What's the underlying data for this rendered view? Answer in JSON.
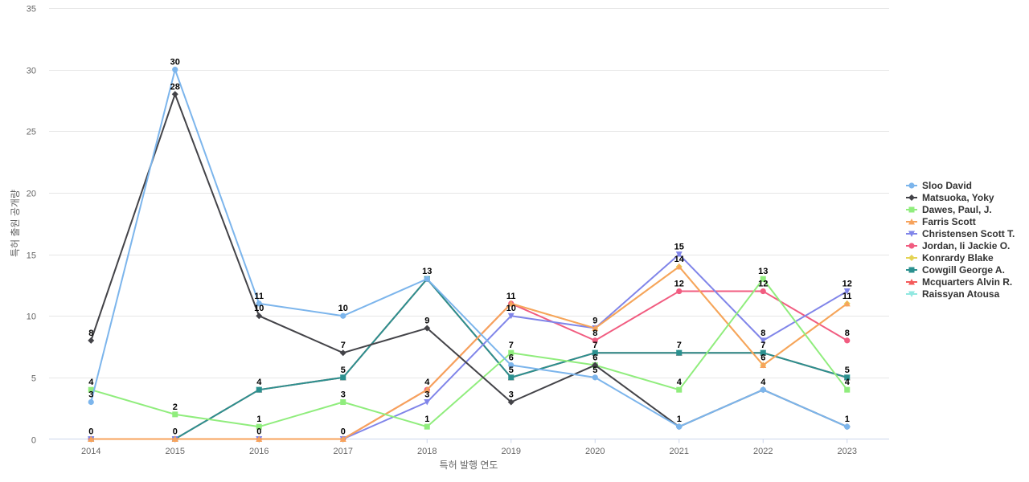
{
  "chart_data": {
    "type": "line",
    "title": "",
    "xlabel": "특허 발행 연도",
    "ylabel": "특허 출원 공개량",
    "ylim": [
      0,
      35
    ],
    "yticks": [
      0,
      5,
      10,
      15,
      20,
      25,
      30,
      35
    ],
    "grid": true,
    "legend_position": "right",
    "categories": [
      "2014",
      "2015",
      "2016",
      "2017",
      "2018",
      "2019",
      "2020",
      "2021",
      "2022",
      "2023"
    ],
    "series": [
      {
        "name": "Sloo David",
        "color": "#7cb5ec",
        "marker": "circle",
        "values": [
          3,
          30,
          11,
          10,
          13,
          6,
          5,
          1,
          4,
          1
        ]
      },
      {
        "name": "Matsuoka, Yoky",
        "color": "#434348",
        "marker": "diamond",
        "values": [
          8,
          28,
          10,
          7,
          9,
          3,
          6,
          1,
          4,
          1
        ]
      },
      {
        "name": "Dawes, Paul, J.",
        "color": "#90ed7d",
        "marker": "square",
        "values": [
          4,
          2,
          1,
          3,
          1,
          7,
          6,
          4,
          13,
          4
        ]
      },
      {
        "name": "Farris Scott",
        "color": "#f7a35c",
        "marker": "triangle",
        "values": [
          0,
          0,
          0,
          0,
          4,
          11,
          9,
          14,
          6,
          11
        ]
      },
      {
        "name": "Christensen Scott T.",
        "color": "#8085e9",
        "marker": "triangle-down",
        "values": [
          0,
          0,
          0,
          0,
          3,
          10,
          9,
          15,
          8,
          12
        ]
      },
      {
        "name": "Jordan, Ii Jackie O.",
        "color": "#f15c80",
        "marker": "circle",
        "values": [
          0,
          0,
          0,
          0,
          4,
          11,
          8,
          12,
          12,
          8
        ]
      },
      {
        "name": "Konrardy Blake",
        "color": "#e4d354",
        "marker": "diamond",
        "values": [
          0,
          0,
          0,
          0,
          4,
          11,
          9,
          14,
          6,
          11
        ]
      },
      {
        "name": "Cowgill George A.",
        "color": "#2b908f",
        "marker": "square",
        "values": [
          0,
          0,
          4,
          5,
          13,
          5,
          7,
          7,
          7,
          5
        ]
      },
      {
        "name": "Mcquarters Alvin R.",
        "color": "#f45b5b",
        "marker": "triangle",
        "values": [
          0,
          0,
          4,
          5,
          13,
          5,
          7,
          7,
          7,
          5
        ]
      },
      {
        "name": "Raissyan Atousa",
        "color": "#91e8e1",
        "marker": "triangle-down",
        "values": [
          0,
          0,
          4,
          5,
          13,
          5,
          7,
          7,
          7,
          5
        ]
      }
    ],
    "data_labels": [
      {
        "series": "Sloo David",
        "x": "2014",
        "value": "3"
      },
      {
        "series": "Matsuoka, Yoky",
        "x": "2014",
        "value": "8"
      },
      {
        "series": "Dawes, Paul, J.",
        "x": "2014",
        "value": "4"
      },
      {
        "series": "Raissyan Atousa",
        "x": "2014",
        "value": "0"
      },
      {
        "series": "Sloo David",
        "x": "2015",
        "value": "30"
      },
      {
        "series": "Matsuoka, Yoky",
        "x": "2015",
        "value": "28"
      },
      {
        "series": "Dawes, Paul, J.",
        "x": "2015",
        "value": "2"
      },
      {
        "series": "Raissyan Atousa",
        "x": "2015",
        "value": "0"
      },
      {
        "series": "Sloo David",
        "x": "2016",
        "value": "11"
      },
      {
        "series": "Matsuoka, Yoky",
        "x": "2016",
        "value": "10"
      },
      {
        "series": "Cowgill George A.",
        "x": "2016",
        "value": "4"
      },
      {
        "series": "Dawes, Paul, J.",
        "x": "2016",
        "value": "1"
      },
      {
        "series": "Farris Scott",
        "x": "2016",
        "value": "0"
      },
      {
        "series": "Sloo David",
        "x": "2017",
        "value": "10"
      },
      {
        "series": "Matsuoka, Yoky",
        "x": "2017",
        "value": "7"
      },
      {
        "series": "Cowgill George A.",
        "x": "2017",
        "value": "5"
      },
      {
        "series": "Dawes, Paul, J.",
        "x": "2017",
        "value": "3"
      },
      {
        "series": "Farris Scott",
        "x": "2017",
        "value": "0"
      },
      {
        "series": "Cowgill George A.",
        "x": "2018",
        "value": "13"
      },
      {
        "series": "Matsuoka, Yoky",
        "x": "2018",
        "value": "9"
      },
      {
        "series": "Konrardy Blake",
        "x": "2018",
        "value": "4"
      },
      {
        "series": "Christensen Scott T.",
        "x": "2018",
        "value": "3"
      },
      {
        "series": "Dawes, Paul, J.",
        "x": "2018",
        "value": "1"
      },
      {
        "series": "Konrardy Blake",
        "x": "2019",
        "value": "11"
      },
      {
        "series": "Christensen Scott T.",
        "x": "2019",
        "value": "10"
      },
      {
        "series": "Dawes, Paul, J.",
        "x": "2019",
        "value": "7"
      },
      {
        "series": "Sloo David",
        "x": "2019",
        "value": "6"
      },
      {
        "series": "Cowgill George A.",
        "x": "2019",
        "value": "5"
      },
      {
        "series": "Matsuoka, Yoky",
        "x": "2019",
        "value": "3"
      },
      {
        "series": "Konrardy Blake",
        "x": "2020",
        "value": "9"
      },
      {
        "series": "Jordan, Ii Jackie O.",
        "x": "2020",
        "value": "8"
      },
      {
        "series": "Cowgill George A.",
        "x": "2020",
        "value": "7"
      },
      {
        "series": "Matsuoka, Yoky",
        "x": "2020",
        "value": "6"
      },
      {
        "series": "Sloo David",
        "x": "2020",
        "value": "5"
      },
      {
        "series": "Christensen Scott T.",
        "x": "2021",
        "value": "15"
      },
      {
        "series": "Konrardy Blake",
        "x": "2021",
        "value": "14"
      },
      {
        "series": "Jordan, Ii Jackie O.",
        "x": "2021",
        "value": "12"
      },
      {
        "series": "Cowgill George A.",
        "x": "2021",
        "value": "7"
      },
      {
        "series": "Dawes, Paul, J.",
        "x": "2021",
        "value": "4"
      },
      {
        "series": "Sloo David",
        "x": "2021",
        "value": "1"
      },
      {
        "series": "Dawes, Paul, J.",
        "x": "2022",
        "value": "13"
      },
      {
        "series": "Jordan, Ii Jackie O.",
        "x": "2022",
        "value": "12"
      },
      {
        "series": "Christensen Scott T.",
        "x": "2022",
        "value": "8"
      },
      {
        "series": "Cowgill George A.",
        "x": "2022",
        "value": "7"
      },
      {
        "series": "Konrardy Blake",
        "x": "2022",
        "value": "6"
      },
      {
        "series": "Sloo David",
        "x": "2022",
        "value": "4"
      },
      {
        "series": "Christensen Scott T.",
        "x": "2023",
        "value": "12"
      },
      {
        "series": "Konrardy Blake",
        "x": "2023",
        "value": "11"
      },
      {
        "series": "Jordan, Ii Jackie O.",
        "x": "2023",
        "value": "8"
      },
      {
        "series": "Cowgill George A.",
        "x": "2023",
        "value": "5"
      },
      {
        "series": "Dawes, Paul, J.",
        "x": "2023",
        "value": "4"
      },
      {
        "series": "Sloo David",
        "x": "2023",
        "value": "1"
      }
    ]
  }
}
